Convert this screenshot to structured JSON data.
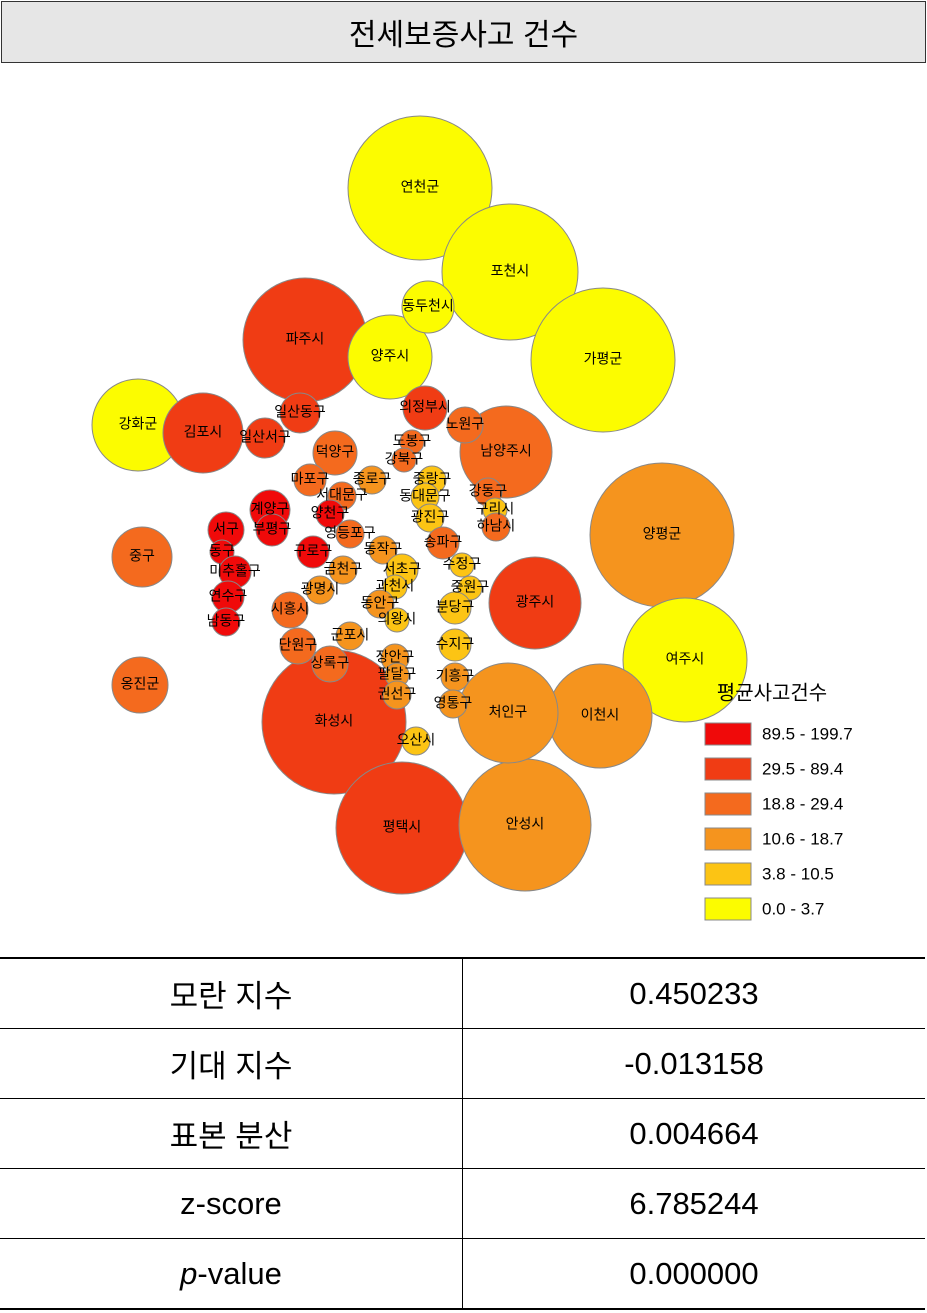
{
  "header": {
    "title": "전세보증사고 건수"
  },
  "map": {
    "regions": [
      {
        "label": "연천군",
        "color": "#fcfc00"
      },
      {
        "label": "포천시",
        "color": "#fcfc00"
      },
      {
        "label": "가평군",
        "color": "#fcfc00"
      },
      {
        "label": "파주시",
        "color": "#f03c14"
      },
      {
        "label": "양평군",
        "color": "#f5941e"
      },
      {
        "label": "여주시",
        "color": "#fcfc00"
      },
      {
        "label": "화성시",
        "color": "#f03c14"
      },
      {
        "label": "평택시",
        "color": "#f03c14"
      },
      {
        "label": "안성시",
        "color": "#f5941e"
      },
      {
        "label": "이천시",
        "color": "#f5941e"
      },
      {
        "label": "처인구",
        "color": "#f5941e"
      },
      {
        "label": "강화군",
        "color": "#fcfc00"
      },
      {
        "label": "남양주시",
        "color": "#f46a1e"
      },
      {
        "label": "광주시",
        "color": "#f03c14"
      },
      {
        "label": "양주시",
        "color": "#fcfc00"
      },
      {
        "label": "김포시",
        "color": "#f03c14"
      },
      {
        "label": "동두천시",
        "color": "#fcfc00"
      },
      {
        "label": "옹진군",
        "color": "#f46a1e"
      },
      {
        "label": "중구",
        "color": "#f46a1e"
      },
      {
        "label": "의정부시",
        "color": "#f03c14"
      },
      {
        "label": "노원구",
        "color": "#f46a1e"
      },
      {
        "label": "일산동구",
        "color": "#f03c14"
      },
      {
        "label": "일산서구",
        "color": "#f03c14"
      },
      {
        "label": "덕양구",
        "color": "#f46a1e"
      },
      {
        "label": "도봉구",
        "color": "#f46a1e"
      },
      {
        "label": "강북구",
        "color": "#f46a1e"
      },
      {
        "label": "마포구",
        "color": "#f46a1e"
      },
      {
        "label": "종로구",
        "color": "#f5941e"
      },
      {
        "label": "중랑구",
        "color": "#fcc414"
      },
      {
        "label": "강동구",
        "color": "#f46a1e"
      },
      {
        "label": "서대문구",
        "color": "#f46a1e"
      },
      {
        "label": "동대문구",
        "color": "#fcc414"
      },
      {
        "label": "계양구",
        "color": "#f00a0a"
      },
      {
        "label": "양천구",
        "color": "#f00a0a"
      },
      {
        "label": "광진구",
        "color": "#fcc414"
      },
      {
        "label": "구리시",
        "color": "#fcc414"
      },
      {
        "label": "하남시",
        "color": "#f46a1e"
      },
      {
        "label": "서구",
        "color": "#f00a0a"
      },
      {
        "label": "부평구",
        "color": "#f00a0a"
      },
      {
        "label": "영등포구",
        "color": "#f46a1e"
      },
      {
        "label": "동구",
        "color": "#f00a0a"
      },
      {
        "label": "구로구",
        "color": "#f00a0a"
      },
      {
        "label": "동작구",
        "color": "#f5941e"
      },
      {
        "label": "송파구",
        "color": "#f46a1e"
      },
      {
        "label": "미추홀구",
        "color": "#f00a0a"
      },
      {
        "label": "금천구",
        "color": "#f5941e"
      },
      {
        "label": "서초구",
        "color": "#fcc414"
      },
      {
        "label": "수정구",
        "color": "#fcc414"
      },
      {
        "label": "과천시",
        "color": "#fcc414"
      },
      {
        "label": "중원구",
        "color": "#fcc414"
      },
      {
        "label": "연수구",
        "color": "#f00a0a"
      },
      {
        "label": "광명시",
        "color": "#f5941e"
      },
      {
        "label": "동안구",
        "color": "#f5941e"
      },
      {
        "label": "분당구",
        "color": "#fcc414"
      },
      {
        "label": "시흥시",
        "color": "#f46a1e"
      },
      {
        "label": "의왕시",
        "color": "#fcc414"
      },
      {
        "label": "남동구",
        "color": "#f00a0a"
      },
      {
        "label": "군포시",
        "color": "#f5941e"
      },
      {
        "label": "단원구",
        "color": "#f46a1e"
      },
      {
        "label": "수지구",
        "color": "#fcc414"
      },
      {
        "label": "장안구",
        "color": "#f5941e"
      },
      {
        "label": "상록구",
        "color": "#f46a1e"
      },
      {
        "label": "팔달구",
        "color": "#f5941e"
      },
      {
        "label": "기흥구",
        "color": "#f5941e"
      },
      {
        "label": "권선구",
        "color": "#f5941e"
      },
      {
        "label": "영통구",
        "color": "#f5941e"
      },
      {
        "label": "오산시",
        "color": "#fcc414"
      }
    ],
    "legend": {
      "title": "평균사고건수",
      "items": [
        {
          "label": "89.5 - 199.7",
          "color": "#f00a0a"
        },
        {
          "label": "29.5 - 89.4",
          "color": "#f03c14"
        },
        {
          "label": "18.8 - 29.4",
          "color": "#f46a1e"
        },
        {
          "label": "10.6 - 18.7",
          "color": "#f5941e"
        },
        {
          "label": "3.8 - 10.5",
          "color": "#fcc414"
        },
        {
          "label": "0.0 - 3.7",
          "color": "#fcfc00"
        }
      ]
    }
  },
  "table": {
    "rows": [
      [
        "모란 지수",
        "0.450233"
      ],
      [
        "기대 지수",
        "-0.013158"
      ],
      [
        "표본 분산",
        "0.004664"
      ],
      [
        "z-score",
        "6.785244"
      ],
      [
        "p-value",
        "0.000000"
      ]
    ]
  }
}
